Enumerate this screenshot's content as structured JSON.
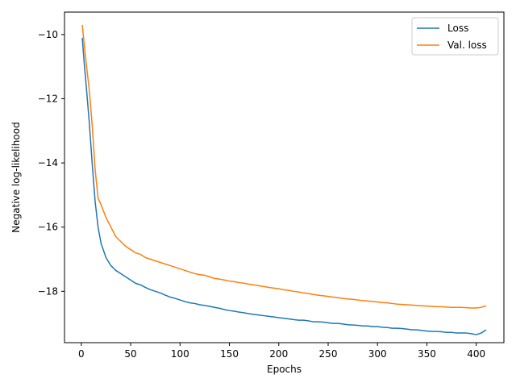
{
  "chart_data": {
    "type": "line",
    "title": "",
    "xlabel": "Epochs",
    "ylabel": "Negative log-likelihood",
    "xlim": [
      -17,
      428
    ],
    "ylim": [
      -19.6,
      -9.3
    ],
    "xticks": [
      0,
      50,
      100,
      150,
      200,
      250,
      300,
      350,
      400
    ],
    "yticks": [
      -18,
      -16,
      -14,
      -12,
      -10
    ],
    "ytick_labels": [
      "−18",
      "−16",
      "−14",
      "−12",
      "−10"
    ],
    "grid": false,
    "legend_position": "upper right",
    "series": [
      {
        "name": "Loss",
        "color": "#1f77b4",
        "x": [
          1,
          3,
          5,
          8,
          11,
          14,
          17,
          20,
          25,
          30,
          35,
          40,
          45,
          50,
          55,
          60,
          65,
          70,
          75,
          80,
          85,
          90,
          95,
          100,
          105,
          110,
          115,
          120,
          125,
          130,
          135,
          140,
          145,
          150,
          155,
          160,
          165,
          170,
          175,
          180,
          185,
          190,
          195,
          200,
          205,
          210,
          215,
          220,
          225,
          230,
          235,
          240,
          245,
          250,
          255,
          260,
          265,
          270,
          275,
          280,
          285,
          290,
          295,
          300,
          305,
          310,
          315,
          320,
          325,
          330,
          335,
          340,
          345,
          350,
          355,
          360,
          365,
          370,
          375,
          380,
          385,
          390,
          395,
          400,
          405,
          410
        ],
        "values": [
          -10.1,
          -10.9,
          -11.6,
          -12.7,
          -14.0,
          -15.2,
          -16.0,
          -16.5,
          -16.95,
          -17.2,
          -17.35,
          -17.45,
          -17.55,
          -17.65,
          -17.75,
          -17.8,
          -17.88,
          -17.95,
          -18.0,
          -18.05,
          -18.12,
          -18.18,
          -18.22,
          -18.27,
          -18.32,
          -18.36,
          -18.38,
          -18.42,
          -18.44,
          -18.47,
          -18.5,
          -18.53,
          -18.57,
          -18.6,
          -18.62,
          -18.65,
          -18.67,
          -18.7,
          -18.72,
          -18.74,
          -18.76,
          -18.78,
          -18.8,
          -18.82,
          -18.84,
          -18.86,
          -18.88,
          -18.9,
          -18.9,
          -18.92,
          -18.95,
          -18.95,
          -18.96,
          -18.98,
          -19.0,
          -19.0,
          -19.02,
          -19.04,
          -19.05,
          -19.06,
          -19.08,
          -19.08,
          -19.1,
          -19.1,
          -19.12,
          -19.13,
          -19.15,
          -19.15,
          -19.16,
          -19.18,
          -19.2,
          -19.2,
          -19.22,
          -19.24,
          -19.25,
          -19.25,
          -19.26,
          -19.28,
          -19.28,
          -19.3,
          -19.3,
          -19.3,
          -19.32,
          -19.35,
          -19.3,
          -19.2
        ]
      },
      {
        "name": "Val. loss",
        "color": "#ff7f0e",
        "x": [
          1,
          3,
          5,
          8,
          11,
          14,
          17,
          20,
          25,
          30,
          35,
          40,
          45,
          50,
          55,
          60,
          65,
          70,
          75,
          80,
          85,
          90,
          95,
          100,
          105,
          110,
          115,
          120,
          125,
          130,
          135,
          140,
          145,
          150,
          155,
          160,
          165,
          170,
          175,
          180,
          185,
          190,
          195,
          200,
          205,
          210,
          215,
          220,
          225,
          230,
          235,
          240,
          245,
          250,
          255,
          260,
          265,
          270,
          275,
          280,
          285,
          290,
          295,
          300,
          305,
          310,
          315,
          320,
          325,
          330,
          335,
          340,
          345,
          350,
          355,
          360,
          365,
          370,
          375,
          380,
          385,
          390,
          395,
          400,
          405,
          410
        ],
        "values": [
          -9.7,
          -10.3,
          -10.9,
          -11.7,
          -12.8,
          -14.2,
          -15.1,
          -15.3,
          -15.7,
          -16.0,
          -16.3,
          -16.45,
          -16.6,
          -16.7,
          -16.8,
          -16.85,
          -16.95,
          -17.0,
          -17.05,
          -17.1,
          -17.15,
          -17.2,
          -17.25,
          -17.3,
          -17.35,
          -17.4,
          -17.45,
          -17.48,
          -17.5,
          -17.55,
          -17.6,
          -17.62,
          -17.65,
          -17.68,
          -17.7,
          -17.73,
          -17.75,
          -17.78,
          -17.8,
          -17.83,
          -17.85,
          -17.88,
          -17.9,
          -17.92,
          -17.95,
          -17.97,
          -18.0,
          -18.02,
          -18.05,
          -18.07,
          -18.1,
          -18.12,
          -18.14,
          -18.16,
          -18.18,
          -18.2,
          -18.22,
          -18.24,
          -18.25,
          -18.27,
          -18.29,
          -18.3,
          -18.32,
          -18.33,
          -18.35,
          -18.36,
          -18.38,
          -18.4,
          -18.41,
          -18.42,
          -18.43,
          -18.44,
          -18.45,
          -18.46,
          -18.47,
          -18.48,
          -18.48,
          -18.49,
          -18.5,
          -18.5,
          -18.5,
          -18.51,
          -18.52,
          -18.52,
          -18.5,
          -18.45
        ]
      }
    ]
  }
}
